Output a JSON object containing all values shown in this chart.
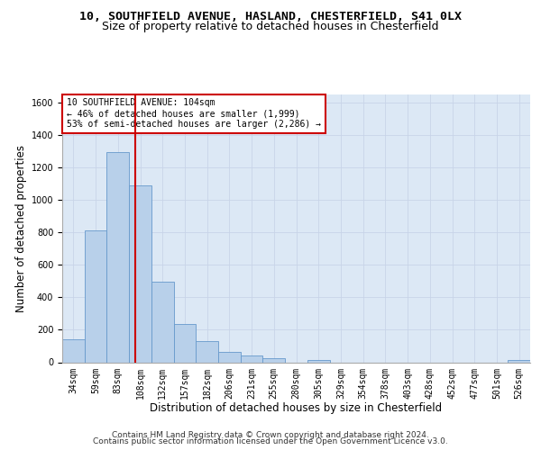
{
  "title_line1": "10, SOUTHFIELD AVENUE, HASLAND, CHESTERFIELD, S41 0LX",
  "title_line2": "Size of property relative to detached houses in Chesterfield",
  "xlabel": "Distribution of detached houses by size in Chesterfield",
  "ylabel": "Number of detached properties",
  "footer_line1": "Contains HM Land Registry data © Crown copyright and database right 2024.",
  "footer_line2": "Contains public sector information licensed under the Open Government Licence v3.0.",
  "bin_labels": [
    "34sqm",
    "59sqm",
    "83sqm",
    "108sqm",
    "132sqm",
    "157sqm",
    "182sqm",
    "206sqm",
    "231sqm",
    "255sqm",
    "280sqm",
    "305sqm",
    "329sqm",
    "354sqm",
    "378sqm",
    "403sqm",
    "428sqm",
    "452sqm",
    "477sqm",
    "501sqm",
    "526sqm"
  ],
  "bar_values": [
    140,
    815,
    1295,
    1090,
    495,
    235,
    130,
    65,
    40,
    27,
    0,
    15,
    0,
    0,
    0,
    0,
    0,
    0,
    0,
    0,
    15
  ],
  "bar_color": "#b8d0ea",
  "bar_edge_color": "#6699cc",
  "property_line_x": 2.78,
  "property_line_color": "#cc0000",
  "annotation_text": "10 SOUTHFIELD AVENUE: 104sqm\n← 46% of detached houses are smaller (1,999)\n53% of semi-detached houses are larger (2,286) →",
  "annotation_box_color": "#cc0000",
  "ylim": [
    0,
    1650
  ],
  "yticks": [
    0,
    200,
    400,
    600,
    800,
    1000,
    1200,
    1400,
    1600
  ],
  "grid_color": "#c8d4e8",
  "bg_color": "#dce8f5",
  "title1_fontsize": 9.5,
  "title2_fontsize": 9.0,
  "xlabel_fontsize": 8.5,
  "ylabel_fontsize": 8.5,
  "tick_fontsize": 7.0,
  "annotation_fontsize": 7.0,
  "footer_fontsize": 6.5
}
